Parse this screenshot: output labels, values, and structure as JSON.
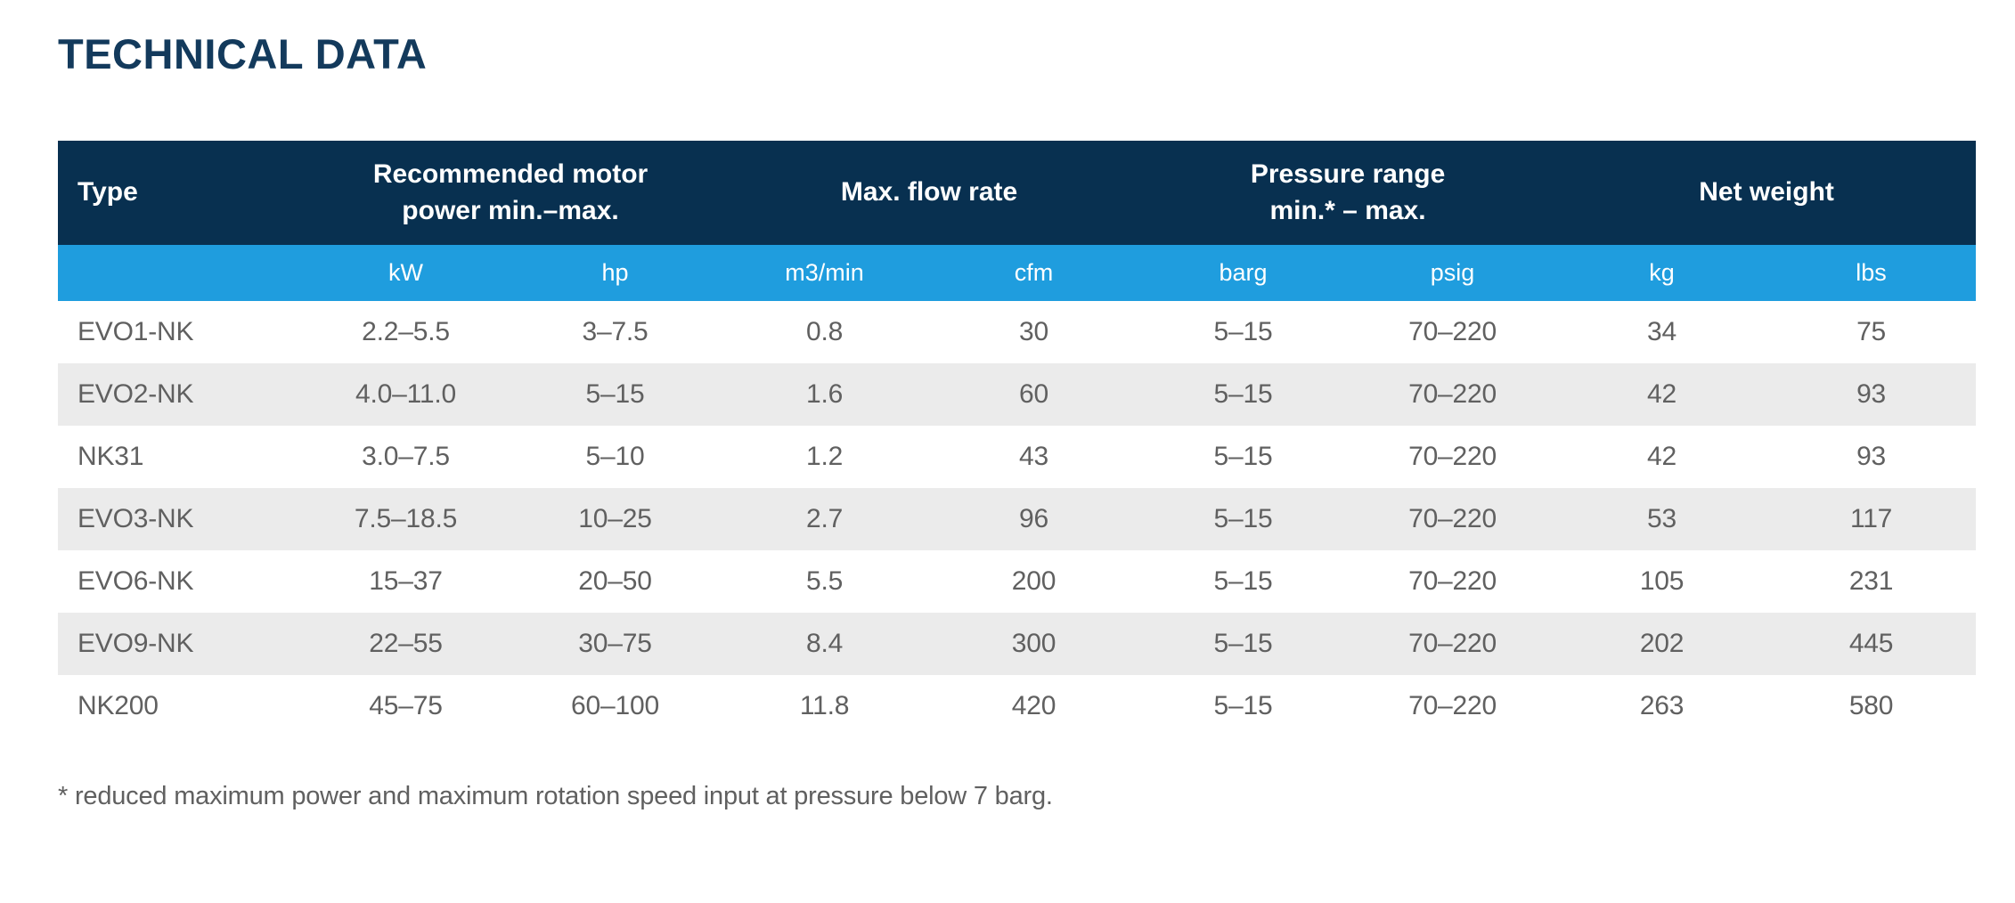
{
  "page_title": "TECHNICAL DATA",
  "colors": {
    "header_navy": "#083050",
    "unit_blue": "#1f9dde",
    "row_alt_gray": "#ebebeb",
    "title_navy": "#133a5c",
    "body_text_gray": "#606060"
  },
  "table": {
    "header_groups": [
      {
        "label": "Type",
        "span": 1
      },
      {
        "label": "Recommended motor\npower min.–max.",
        "span": 2
      },
      {
        "label": "Max. flow rate",
        "span": 2
      },
      {
        "label": "Pressure range\nmin.* – max.",
        "span": 2
      },
      {
        "label": "Net weight",
        "span": 2
      }
    ],
    "units": [
      "",
      "kW",
      "hp",
      "m3/min",
      "cfm",
      "barg",
      "psig",
      "kg",
      "lbs"
    ],
    "rows": [
      [
        "EVO1-NK",
        "2.2–5.5",
        "3–7.5",
        "0.8",
        "30",
        "5–15",
        "70–220",
        "34",
        "75"
      ],
      [
        "EVO2-NK",
        "4.0–11.0",
        "5–15",
        "1.6",
        "60",
        "5–15",
        "70–220",
        "42",
        "93"
      ],
      [
        "NK31",
        "3.0–7.5",
        "5–10",
        "1.2",
        "43",
        "5–15",
        "70–220",
        "42",
        "93"
      ],
      [
        "EVO3-NK",
        "7.5–18.5",
        "10–25",
        "2.7",
        "96",
        "5–15",
        "70–220",
        "53",
        "117"
      ],
      [
        "EVO6-NK",
        "15–37",
        "20–50",
        "5.5",
        "200",
        "5–15",
        "70–220",
        "105",
        "231"
      ],
      [
        "EVO9-NK",
        "22–55",
        "30–75",
        "8.4",
        "300",
        "5–15",
        "70–220",
        "202",
        "445"
      ],
      [
        "NK200",
        "45–75",
        "60–100",
        "11.8",
        "420",
        "5–15",
        "70–220",
        "263",
        "580"
      ]
    ],
    "footnote": "* reduced maximum power and maximum rotation speed input at pressure below 7 barg."
  }
}
